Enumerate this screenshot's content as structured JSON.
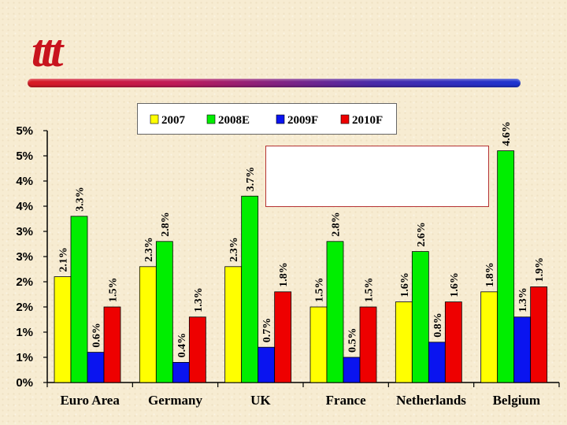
{
  "logo": {
    "text": "ttt"
  },
  "chart_data": {
    "type": "bar",
    "categories": [
      "Euro Area",
      "Germany",
      "UK",
      "France",
      "Netherlands",
      "Belgium"
    ],
    "series": [
      {
        "name": "2007",
        "color": "#ffff00",
        "values": [
          2.1,
          2.3,
          2.3,
          1.5,
          1.6,
          1.8
        ],
        "labels": [
          "2.1%",
          "2.3%",
          "2.3%",
          "1.5%",
          "1.6%",
          "1.8%"
        ]
      },
      {
        "name": "2008E",
        "color": "#00ee00",
        "values": [
          3.3,
          2.8,
          3.7,
          2.8,
          2.6,
          4.6
        ],
        "labels": [
          "3.3%",
          "2.8%",
          "3.7%",
          "2.8%",
          "2.6%",
          "4.6%"
        ]
      },
      {
        "name": "2009F",
        "color": "#0a14f0",
        "values": [
          0.6,
          0.4,
          0.7,
          0.5,
          0.8,
          1.3
        ],
        "labels": [
          "0.6%",
          "0.4%",
          "0.7%",
          "0.5%",
          "0.8%",
          "1.3%"
        ]
      },
      {
        "name": "2010F",
        "color": "#ee0000",
        "values": [
          1.5,
          1.3,
          1.8,
          1.5,
          1.6,
          1.9
        ],
        "labels": [
          "1.5%",
          "1.3%",
          "1.8%",
          "1.5%",
          "1.6%",
          "1.9%"
        ]
      }
    ],
    "ylim": [
      0,
      5
    ],
    "ytick_labels": [
      "0%",
      "1%",
      "1%",
      "2%",
      "2%",
      "3%",
      "3%",
      "4%",
      "4%",
      "5%",
      "5%"
    ],
    "legend": "top",
    "grid": false
  },
  "colors": {
    "rule_start": "#d81a22",
    "rule_end": "#1d34d0",
    "logo": "#c8141e"
  }
}
